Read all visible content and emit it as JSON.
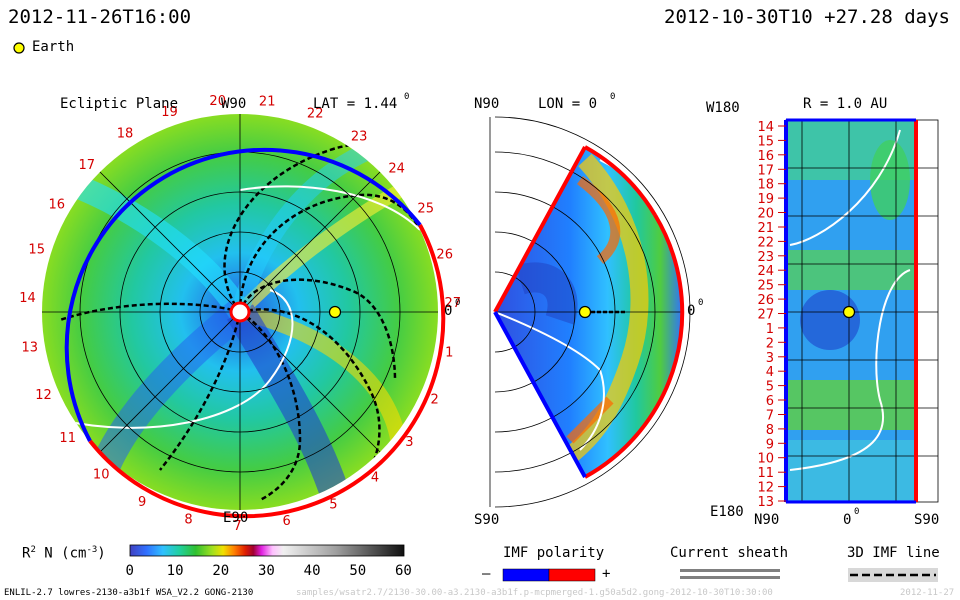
{
  "header": {
    "datetime_left": "2012-11-26T16:00",
    "datetime_right": "2012-10-30T10 +27.28 days",
    "earth_legend": "Earth"
  },
  "panels": {
    "ecliptic": {
      "title": "Ecliptic Plane",
      "top_label": "W90",
      "bottom_label": "E90",
      "right_label": "0",
      "lat_label": "LAT = 1.44",
      "deg_symbol": "0",
      "carrington_ticks": [
        "20",
        "21",
        "22",
        "23",
        "24",
        "25",
        "26",
        "27",
        "1",
        "2",
        "3",
        "4",
        "5",
        "6",
        "7",
        "8",
        "9",
        "10",
        "11",
        "12",
        "13",
        "14",
        "15",
        "16",
        "17",
        "18",
        "19"
      ]
    },
    "meridional": {
      "top_label": "N90",
      "bottom_label": "S90",
      "lon_label": "LON = 0",
      "right_label": "0",
      "deg_symbol": "0"
    },
    "radial": {
      "title": "R = 1.0 AU",
      "top_left_label": "W180",
      "bottom_left_label": "E180",
      "bottom_x_labels": [
        "N90",
        "0",
        "S90"
      ],
      "deg_symbol": "0",
      "y_ticks": [
        "14",
        "15",
        "16",
        "17",
        "18",
        "19",
        "20",
        "21",
        "22",
        "23",
        "24",
        "25",
        "26",
        "27",
        "1",
        "2",
        "3",
        "4",
        "5",
        "6",
        "7",
        "8",
        "9",
        "10",
        "11",
        "12",
        "13"
      ]
    }
  },
  "colorbar": {
    "label_r": "R",
    "label_sup": "2",
    "label_n": "N (cm",
    "label_exp": "-3",
    "label_close": ")",
    "ticks": [
      "0",
      "10",
      "20",
      "30",
      "40",
      "50",
      "60"
    ]
  },
  "legends": {
    "imf_title": "IMF polarity",
    "imf_minus": "–",
    "imf_plus": "+",
    "sheath_title": "Current sheath",
    "imf3d_title": "3D IMF line"
  },
  "footer": {
    "model_info": "ENLIL-2.7 lowres-2130-a3b1f WSA_V2.2 GONG-2130",
    "faint_path": "samples/wsatr2.7/2130-30.00-a3.2130-a3b1f.p-mcpmerged-1.g50a5d2.gong-2012-10-30T10:30:00",
    "faint_right": "2012-11-27"
  },
  "chart_data": {
    "type": "heatmap",
    "quantity": "R^2 N (cm^-3)",
    "colorbar_range": [
      0,
      60
    ],
    "earth_position": {
      "longitude_deg": 0,
      "latitude_deg": 1.44,
      "radius_au": 1.0
    },
    "colors": {
      "boundary_positive": "#ff0000",
      "boundary_negative": "#0000ff",
      "earth": "#ffff00",
      "carrington_ticks": "#d40000"
    }
  }
}
